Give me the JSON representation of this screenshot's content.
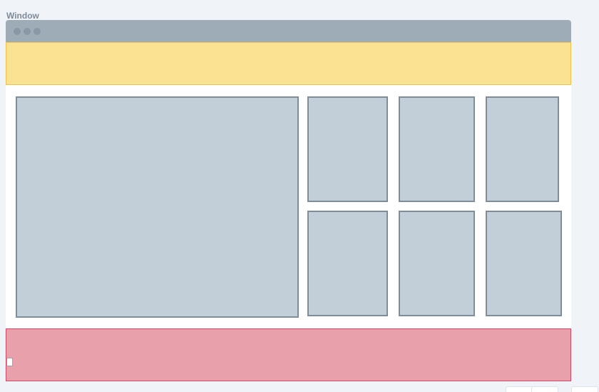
{
  "window": {
    "label": "Window"
  },
  "colors": {
    "header_fill": "#fbe192",
    "footer_fill": "#e8a1ab",
    "panel_fill": "#c3cfd8",
    "titlebar_fill": "#9eacb8"
  }
}
